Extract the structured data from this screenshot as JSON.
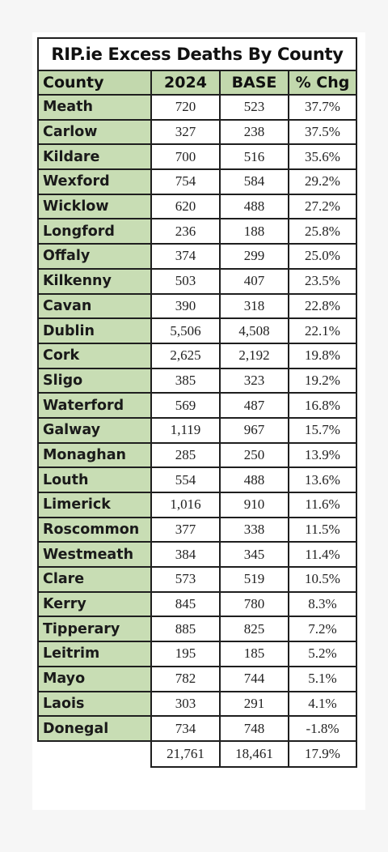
{
  "title": "RIP.ie Excess Deaths By County",
  "headers": {
    "county": "County",
    "year": "2024",
    "base": "BASE",
    "pct": "% Chg"
  },
  "rows": [
    {
      "county": "Meath",
      "y2024": "720",
      "base": "523",
      "pct": "37.7%"
    },
    {
      "county": "Carlow",
      "y2024": "327",
      "base": "238",
      "pct": "37.5%"
    },
    {
      "county": "Kildare",
      "y2024": "700",
      "base": "516",
      "pct": "35.6%"
    },
    {
      "county": "Wexford",
      "y2024": "754",
      "base": "584",
      "pct": "29.2%"
    },
    {
      "county": "Wicklow",
      "y2024": "620",
      "base": "488",
      "pct": "27.2%"
    },
    {
      "county": "Longford",
      "y2024": "236",
      "base": "188",
      "pct": "25.8%"
    },
    {
      "county": "Offaly",
      "y2024": "374",
      "base": "299",
      "pct": "25.0%"
    },
    {
      "county": "Kilkenny",
      "y2024": "503",
      "base": "407",
      "pct": "23.5%"
    },
    {
      "county": "Cavan",
      "y2024": "390",
      "base": "318",
      "pct": "22.8%"
    },
    {
      "county": "Dublin",
      "y2024": "5,506",
      "base": "4,508",
      "pct": "22.1%"
    },
    {
      "county": "Cork",
      "y2024": "2,625",
      "base": "2,192",
      "pct": "19.8%"
    },
    {
      "county": "Sligo",
      "y2024": "385",
      "base": "323",
      "pct": "19.2%"
    },
    {
      "county": "Waterford",
      "y2024": "569",
      "base": "487",
      "pct": "16.8%"
    },
    {
      "county": "Galway",
      "y2024": "1,119",
      "base": "967",
      "pct": "15.7%"
    },
    {
      "county": "Monaghan",
      "y2024": "285",
      "base": "250",
      "pct": "13.9%"
    },
    {
      "county": "Louth",
      "y2024": "554",
      "base": "488",
      "pct": "13.6%"
    },
    {
      "county": "Limerick",
      "y2024": "1,016",
      "base": "910",
      "pct": "11.6%"
    },
    {
      "county": "Roscommon",
      "y2024": "377",
      "base": "338",
      "pct": "11.5%"
    },
    {
      "county": "Westmeath",
      "y2024": "384",
      "base": "345",
      "pct": "11.4%"
    },
    {
      "county": "Clare",
      "y2024": "573",
      "base": "519",
      "pct": "10.5%"
    },
    {
      "county": "Kerry",
      "y2024": "845",
      "base": "780",
      "pct": "8.3%"
    },
    {
      "county": "Tipperary",
      "y2024": "885",
      "base": "825",
      "pct": "7.2%"
    },
    {
      "county": "Leitrim",
      "y2024": "195",
      "base": "185",
      "pct": "5.2%"
    },
    {
      "county": "Mayo",
      "y2024": "782",
      "base": "744",
      "pct": "5.1%"
    },
    {
      "county": "Laois",
      "y2024": "303",
      "base": "291",
      "pct": "4.1%"
    },
    {
      "county": "Donegal",
      "y2024": "734",
      "base": "748",
      "pct": "-1.8%"
    }
  ],
  "totals": {
    "y2024": "21,761",
    "base": "18,461",
    "pct": "17.9%"
  },
  "colors": {
    "county_fill": "#c8ddb4",
    "header_fill": "#c2d8ad",
    "border": "#1f1f1f"
  }
}
